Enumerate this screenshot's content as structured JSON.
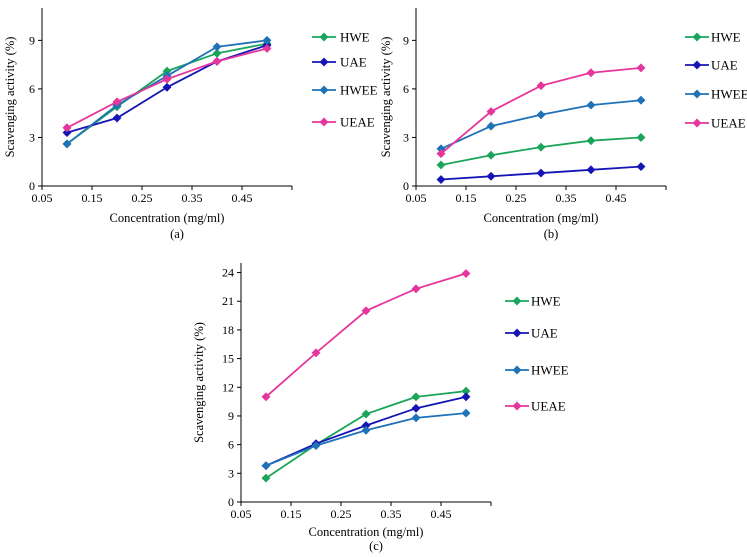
{
  "chart_data": [
    {
      "id": "a",
      "type": "line",
      "panel_label": "(a)",
      "title": "",
      "xlabel": "Concentration (mg/ml)",
      "ylabel": "Scavenging activity (%)",
      "xlim": [
        0.05,
        0.55
      ],
      "ylim": [
        0,
        11
      ],
      "xticks": [
        0.05,
        0.15,
        0.25,
        0.35,
        0.45
      ],
      "xtick_labels": [
        "0.05",
        "0.15",
        "0.25",
        "0.35",
        "0.45"
      ],
      "yticks": [
        0,
        3,
        6,
        9
      ],
      "ytick_labels": [
        "0",
        "3",
        "6",
        "9"
      ],
      "grid": false,
      "legend_position": "right",
      "x": [
        0.1,
        0.2,
        0.3,
        0.4,
        0.5
      ],
      "series": [
        {
          "name": "HWE",
          "color": "#1aa55a",
          "values": [
            2.6,
            4.9,
            7.1,
            8.2,
            8.8
          ]
        },
        {
          "name": "UAE",
          "color": "#1515b5",
          "values": [
            3.3,
            4.2,
            6.1,
            7.7,
            8.7
          ]
        },
        {
          "name": "HWEE",
          "color": "#1f72b8",
          "values": [
            2.6,
            5.0,
            6.8,
            8.6,
            9.0
          ]
        },
        {
          "name": "UEAE",
          "color": "#e6359b",
          "values": [
            3.6,
            5.2,
            6.6,
            7.7,
            8.5
          ]
        }
      ]
    },
    {
      "id": "b",
      "type": "line",
      "panel_label": "(b)",
      "title": "",
      "xlabel": "Concentration (mg/ml)",
      "ylabel": "Scavenging activity (%)",
      "xlim": [
        0.05,
        0.55
      ],
      "ylim": [
        0,
        11
      ],
      "xticks": [
        0.05,
        0.15,
        0.25,
        0.35,
        0.45
      ],
      "xtick_labels": [
        "0.05",
        "0.15",
        "0.25",
        "0.35",
        "0.45"
      ],
      "yticks": [
        0,
        3,
        6,
        9
      ],
      "ytick_labels": [
        "0",
        "3",
        "6",
        "9"
      ],
      "grid": false,
      "legend_position": "right",
      "x": [
        0.1,
        0.2,
        0.3,
        0.4,
        0.5
      ],
      "series": [
        {
          "name": "HWE",
          "color": "#1aa55a",
          "values": [
            1.3,
            1.9,
            2.4,
            2.8,
            3.0
          ]
        },
        {
          "name": "UAE",
          "color": "#1515b5",
          "values": [
            0.4,
            0.6,
            0.8,
            1.0,
            1.2
          ]
        },
        {
          "name": "HWEE",
          "color": "#1f72b8",
          "values": [
            2.3,
            3.7,
            4.4,
            5.0,
            5.3
          ]
        },
        {
          "name": "UEAE",
          "color": "#e6359b",
          "values": [
            2.0,
            4.6,
            6.2,
            7.0,
            7.3
          ]
        }
      ]
    },
    {
      "id": "c",
      "type": "line",
      "panel_label": "(c)",
      "title": "",
      "xlabel": "Concentration (mg/ml)",
      "ylabel": "Scavenging activity (%)",
      "xlim": [
        0.05,
        0.55
      ],
      "ylim": [
        0,
        25
      ],
      "xticks": [
        0.05,
        0.15,
        0.25,
        0.35,
        0.45
      ],
      "xtick_labels": [
        "0.05",
        "0.15",
        "0.25",
        "0.35",
        "0.45"
      ],
      "yticks": [
        0,
        3,
        6,
        9,
        12,
        15,
        18,
        21,
        24
      ],
      "ytick_labels": [
        "0",
        "3",
        "6",
        "9",
        "12",
        "15",
        "18",
        "21",
        "24"
      ],
      "grid": false,
      "legend_position": "right",
      "x": [
        0.1,
        0.2,
        0.3,
        0.4,
        0.5
      ],
      "series": [
        {
          "name": "HWE",
          "color": "#1aa55a",
          "values": [
            2.5,
            6.0,
            9.2,
            11.0,
            11.6
          ]
        },
        {
          "name": "UAE",
          "color": "#1515b5",
          "values": [
            3.8,
            6.1,
            8.0,
            9.8,
            11.0
          ]
        },
        {
          "name": "HWEE",
          "color": "#1f72b8",
          "values": [
            3.8,
            5.9,
            7.5,
            8.8,
            9.3
          ]
        },
        {
          "name": "UEAE",
          "color": "#e6359b",
          "values": [
            11.0,
            15.6,
            20.0,
            22.3,
            23.9
          ]
        }
      ]
    }
  ]
}
